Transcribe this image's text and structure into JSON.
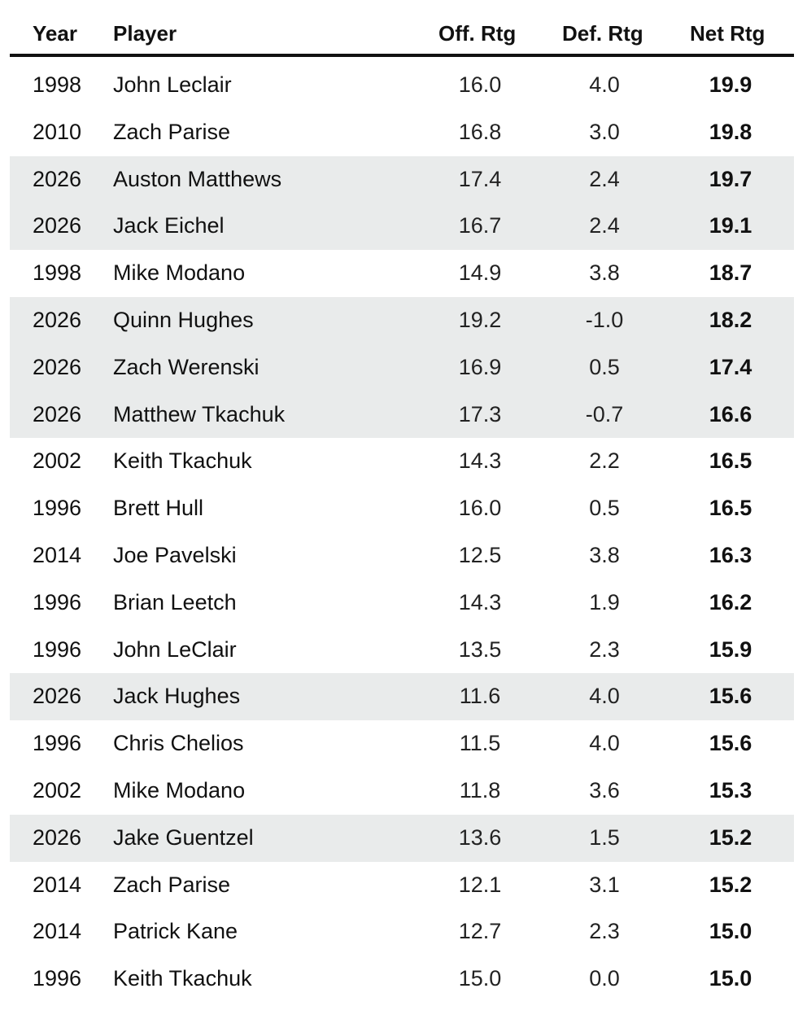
{
  "chart_data": {
    "type": "table",
    "columns": [
      "Year",
      "Player",
      "Off. Rtg",
      "Def. Rtg",
      "Net Rtg"
    ],
    "rows": [
      {
        "year": "1998",
        "player": "John Leclair",
        "off": "16.0",
        "def": "4.0",
        "net": "19.9",
        "highlight": false
      },
      {
        "year": "2010",
        "player": "Zach Parise",
        "off": "16.8",
        "def": "3.0",
        "net": "19.8",
        "highlight": false
      },
      {
        "year": "2026",
        "player": "Auston Matthews",
        "off": "17.4",
        "def": "2.4",
        "net": "19.7",
        "highlight": true
      },
      {
        "year": "2026",
        "player": "Jack Eichel",
        "off": "16.7",
        "def": "2.4",
        "net": "19.1",
        "highlight": true
      },
      {
        "year": "1998",
        "player": "Mike Modano",
        "off": "14.9",
        "def": "3.8",
        "net": "18.7",
        "highlight": false
      },
      {
        "year": "2026",
        "player": "Quinn Hughes",
        "off": "19.2",
        "def": "-1.0",
        "net": "18.2",
        "highlight": true
      },
      {
        "year": "2026",
        "player": "Zach Werenski",
        "off": "16.9",
        "def": "0.5",
        "net": "17.4",
        "highlight": true
      },
      {
        "year": "2026",
        "player": "Matthew Tkachuk",
        "off": "17.3",
        "def": "-0.7",
        "net": "16.6",
        "highlight": true
      },
      {
        "year": "2002",
        "player": "Keith Tkachuk",
        "off": "14.3",
        "def": "2.2",
        "net": "16.5",
        "highlight": false
      },
      {
        "year": "1996",
        "player": "Brett Hull",
        "off": "16.0",
        "def": "0.5",
        "net": "16.5",
        "highlight": false
      },
      {
        "year": "2014",
        "player": "Joe Pavelski",
        "off": "12.5",
        "def": "3.8",
        "net": "16.3",
        "highlight": false
      },
      {
        "year": "1996",
        "player": "Brian Leetch",
        "off": "14.3",
        "def": "1.9",
        "net": "16.2",
        "highlight": false
      },
      {
        "year": "1996",
        "player": "John LeClair",
        "off": "13.5",
        "def": "2.3",
        "net": "15.9",
        "highlight": false
      },
      {
        "year": "2026",
        "player": "Jack Hughes",
        "off": "11.6",
        "def": "4.0",
        "net": "15.6",
        "highlight": true
      },
      {
        "year": "1996",
        "player": "Chris Chelios",
        "off": "11.5",
        "def": "4.0",
        "net": "15.6",
        "highlight": false
      },
      {
        "year": "2002",
        "player": "Mike Modano",
        "off": "11.8",
        "def": "3.6",
        "net": "15.3",
        "highlight": false
      },
      {
        "year": "2026",
        "player": "Jake Guentzel",
        "off": "13.6",
        "def": "1.5",
        "net": "15.2",
        "highlight": true
      },
      {
        "year": "2014",
        "player": "Zach Parise",
        "off": "12.1",
        "def": "3.1",
        "net": "15.2",
        "highlight": false
      },
      {
        "year": "2014",
        "player": "Patrick Kane",
        "off": "12.7",
        "def": "2.3",
        "net": "15.0",
        "highlight": false
      },
      {
        "year": "1996",
        "player": "Keith Tkachuk",
        "off": "15.0",
        "def": "0.0",
        "net": "15.0",
        "highlight": false
      }
    ],
    "highlight_color": "#e9ebeb",
    "header_rule_color": "#111111"
  }
}
